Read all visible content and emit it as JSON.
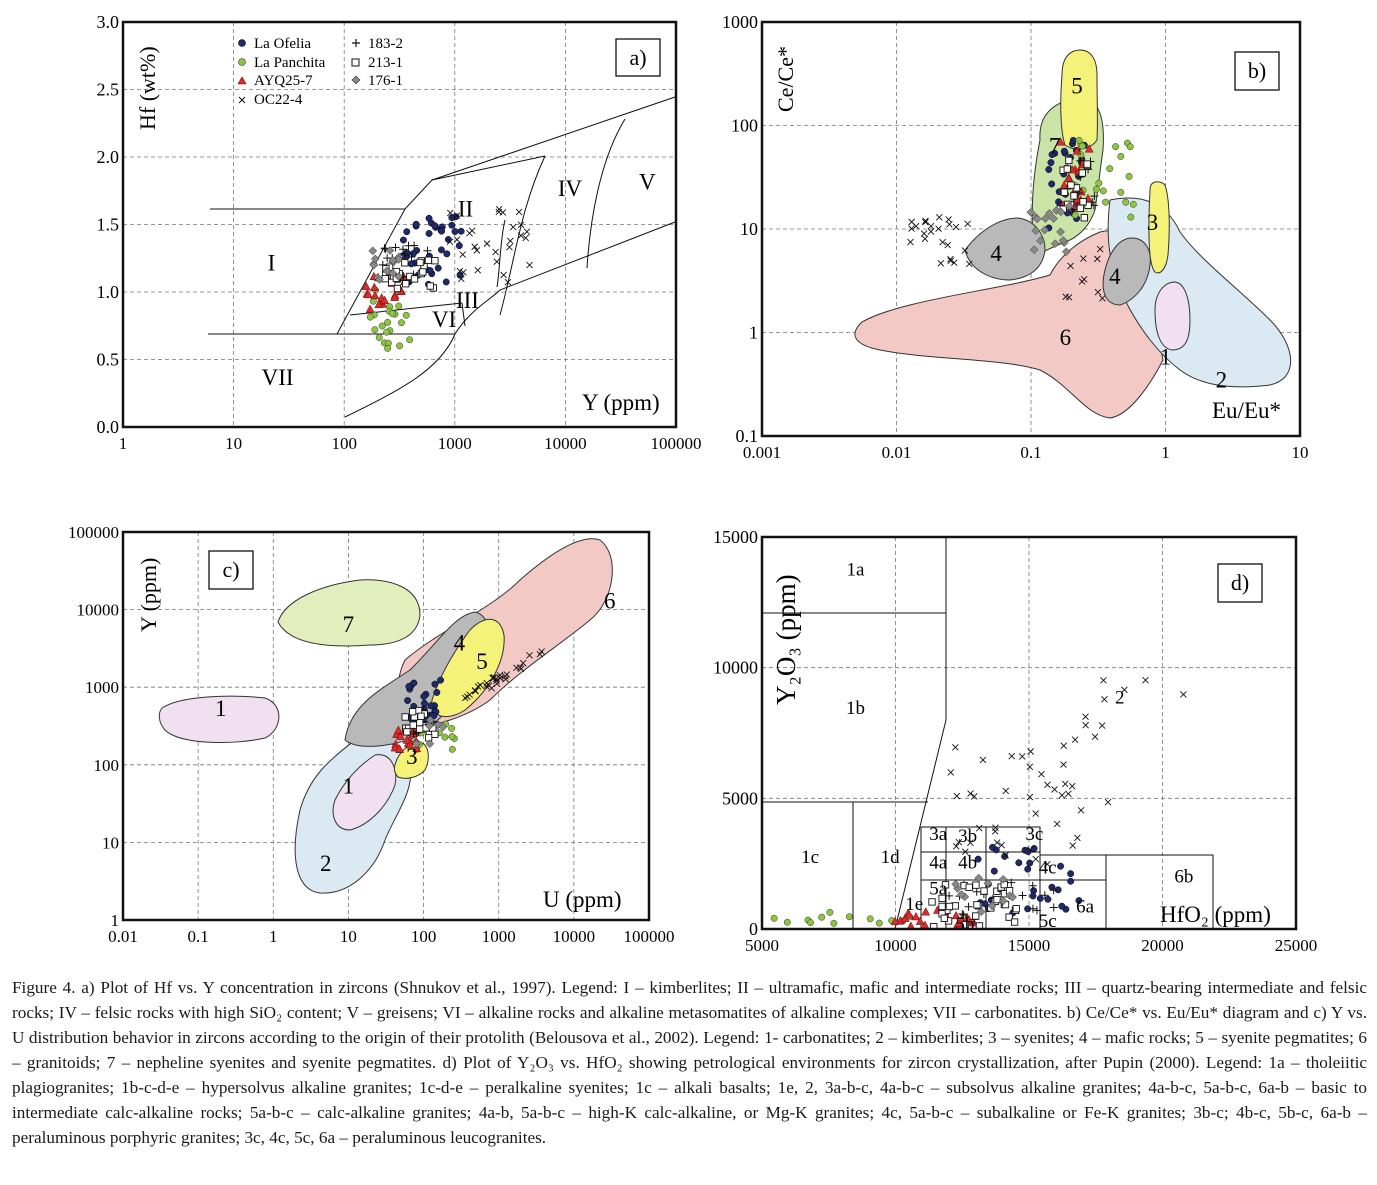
{
  "colors": {
    "kimberlite": "#dbeaf2",
    "carbonatite": "#f1e0ef",
    "syenite": "#f5f27a",
    "mafic": "#b9b9b9",
    "syenite_pegmatite": "#f2f2a0",
    "granitoid": "#f3c9c6",
    "nepheline": "#e2eebc",
    "nepheline_b": "#c9e4a6",
    "ofelia": "#1f2a6b",
    "panchita": "#8cc63f",
    "ayq": "#d32f2f",
    "grey_diamond": "#888888"
  },
  "chart_data": [
    {
      "id": "a",
      "type": "scatter",
      "panel_label": "a)",
      "xscale": "log",
      "xlim": [
        1,
        100000
      ],
      "ylim": [
        0,
        3.0
      ],
      "xticks": [
        "1",
        "10",
        "100",
        "1000",
        "10000",
        "100000"
      ],
      "yticks": [
        "0.0",
        "0.5",
        "1.0",
        "1.5",
        "2.0",
        "2.5",
        "3.0"
      ],
      "xlabel": "Y (ppm)",
      "ylabel": "Hf (wt%)",
      "legend": [
        {
          "symbol": "circle",
          "label": "La Ofelia"
        },
        {
          "symbol": "circle-green",
          "label": "La Panchita"
        },
        {
          "symbol": "triangle",
          "label": "AYQ25-7"
        },
        {
          "symbol": "x",
          "label": "OC22-4"
        },
        {
          "symbol": "plus",
          "label": "183-2"
        },
        {
          "symbol": "square",
          "label": "213-1"
        },
        {
          "symbol": "diamond",
          "label": "176-1"
        }
      ],
      "fields": [
        {
          "label": "I",
          "x": 22,
          "y": 1.2
        },
        {
          "label": "II",
          "x": 1250,
          "y": 1.6
        },
        {
          "label": "III",
          "x": 1300,
          "y": 0.92
        },
        {
          "label": "IV",
          "x": 11000,
          "y": 1.75
        },
        {
          "label": "V",
          "x": 55000,
          "y": 1.8
        },
        {
          "label": "VI",
          "x": 800,
          "y": 0.78
        },
        {
          "label": "VII",
          "x": 25,
          "y": 0.35
        }
      ]
    },
    {
      "id": "b",
      "type": "scatter",
      "panel_label": "b)",
      "xscale": "log",
      "yscale": "log",
      "xlim": [
        0.001,
        10
      ],
      "ylim": [
        0.1,
        1000
      ],
      "xticks": [
        "0.001",
        "0.01",
        "0.1",
        "1",
        "10"
      ],
      "yticks": [
        "0.1",
        "1",
        "10",
        "100",
        "1000"
      ],
      "xlabel": "Eu/Eu*",
      "ylabel": "Ce/Ce*",
      "fields": [
        {
          "label": "1",
          "x": 1.0,
          "y": 0.55
        },
        {
          "label": "2",
          "x": 2.6,
          "y": 0.33
        },
        {
          "label": "3",
          "x": 0.8,
          "y": 11
        },
        {
          "label": "4",
          "x": 0.055,
          "y": 5.5
        },
        {
          "label": "4",
          "x": 0.42,
          "y": 3.3
        },
        {
          "label": "5",
          "x": 0.22,
          "y": 230
        },
        {
          "label": "6",
          "x": 0.18,
          "y": 0.85
        },
        {
          "label": "7",
          "x": 0.15,
          "y": 60
        }
      ]
    },
    {
      "id": "c",
      "type": "scatter",
      "panel_label": "c)",
      "xscale": "log",
      "yscale": "log",
      "xlim": [
        0.01,
        100000
      ],
      "ylim": [
        1,
        100000
      ],
      "xticks": [
        "0.01",
        "0.1",
        "1",
        "10",
        "100",
        "1000",
        "10000",
        "100000"
      ],
      "yticks": [
        "1",
        "10",
        "100",
        "1000",
        "10000",
        "100000"
      ],
      "xlabel": "U (ppm)",
      "ylabel": "Y (ppm)",
      "fields": [
        {
          "label": "1",
          "x": 0.2,
          "y": 500
        },
        {
          "label": "1",
          "x": 10,
          "y": 50
        },
        {
          "label": "2",
          "x": 5,
          "y": 5
        },
        {
          "label": "3",
          "x": 70,
          "y": 120
        },
        {
          "label": "4",
          "x": 300,
          "y": 3500
        },
        {
          "label": "5",
          "x": 600,
          "y": 2000
        },
        {
          "label": "6",
          "x": 30000,
          "y": 12000
        },
        {
          "label": "7",
          "x": 10,
          "y": 6000
        }
      ]
    },
    {
      "id": "d",
      "type": "scatter",
      "panel_label": "d)",
      "xlim": [
        5000,
        25000
      ],
      "ylim": [
        0,
        15000
      ],
      "xticks": [
        "5000",
        "10000",
        "15000",
        "20000",
        "25000"
      ],
      "yticks": [
        "0",
        "5000",
        "10000",
        "15000"
      ],
      "xlabel": "HfO₂ (ppm)",
      "ylabel": "Y₂O₃ (ppm)",
      "fields": [
        {
          "label": "1a",
          "x": 8500,
          "y": 13700
        },
        {
          "label": "1b",
          "x": 8500,
          "y": 8400
        },
        {
          "label": "1c",
          "x": 6800,
          "y": 2700
        },
        {
          "label": "1d",
          "x": 9800,
          "y": 2700
        },
        {
          "label": "1e",
          "x": 10700,
          "y": 900
        },
        {
          "label": "2",
          "x": 18400,
          "y": 8800
        },
        {
          "label": "3a",
          "x": 11600,
          "y": 3580
        },
        {
          "label": "3b",
          "x": 12700,
          "y": 3500
        },
        {
          "label": "3c",
          "x": 15200,
          "y": 3580
        },
        {
          "label": "4a",
          "x": 11600,
          "y": 2480
        },
        {
          "label": "4b",
          "x": 12700,
          "y": 2480
        },
        {
          "label": "4c",
          "x": 15700,
          "y": 2300
        },
        {
          "label": "5a",
          "x": 11600,
          "y": 1480
        },
        {
          "label": "5b",
          "x": 12600,
          "y": 120
        },
        {
          "label": "5c",
          "x": 15700,
          "y": 250
        },
        {
          "label": "6a",
          "x": 17100,
          "y": 800
        },
        {
          "label": "6b",
          "x": 20800,
          "y": 1950
        }
      ]
    }
  ],
  "caption": {
    "line1": "Figure 4. a) Plot of Hf vs. Y concentration in zircons (Shnukov et al., 1997). Legend: I – kimberlites; II – ultramafic, mafic and intermediate rocks; III – quartz-bearing intermediate and felsic rocks; IV – felsic rocks with high SiO₂ content; V – greisens; VI – alkaline rocks and alkaline metasomatites of alkaline complexes; VII – carbonatites. b) Ce/Ce* vs. Eu/Eu* diagram and c) Y vs. U distribution behavior in zircons according to the origin of their protolith (Belousova et al., 2002). Legend: 1- carbonatites; 2 – kimberlites; 3 – syenites; 4 – mafic rocks; 5 – syenite pegmatites; 6 – granitoids; 7 – nepheline syenites and syenite pegmatites. d) Plot of Y₂O₃ vs. HfO₂ showing petrological environments for zircon crystallization, after Pupin (2000). Legend: 1a – tholeiitic plagiogranites; 1b-c-d-e – hypersolvus alkaline granites; 1c-d-e – peralkaline syenites; 1c – alkali basalts; 1e, 2, 3a-b-c, 4a-b-c – subsolvus alkaline granites; 4a-b-c, 5a-b-c, 6a-b – basic to intermediate calc-alkaline rocks; 5a-b-c – calc-alkaline granites; 4a-b, 5a-b-c – high-K calc-alkaline, or Mg-K granites; 4c, 5a-b-c – subalkaline or Fe-K granites; 3b-c; 4b-c, 5b-c, 6a-b – peraluminous porphyric granites; 3c, 4c, 5c, 6a – peraluminous leucogranites."
  }
}
